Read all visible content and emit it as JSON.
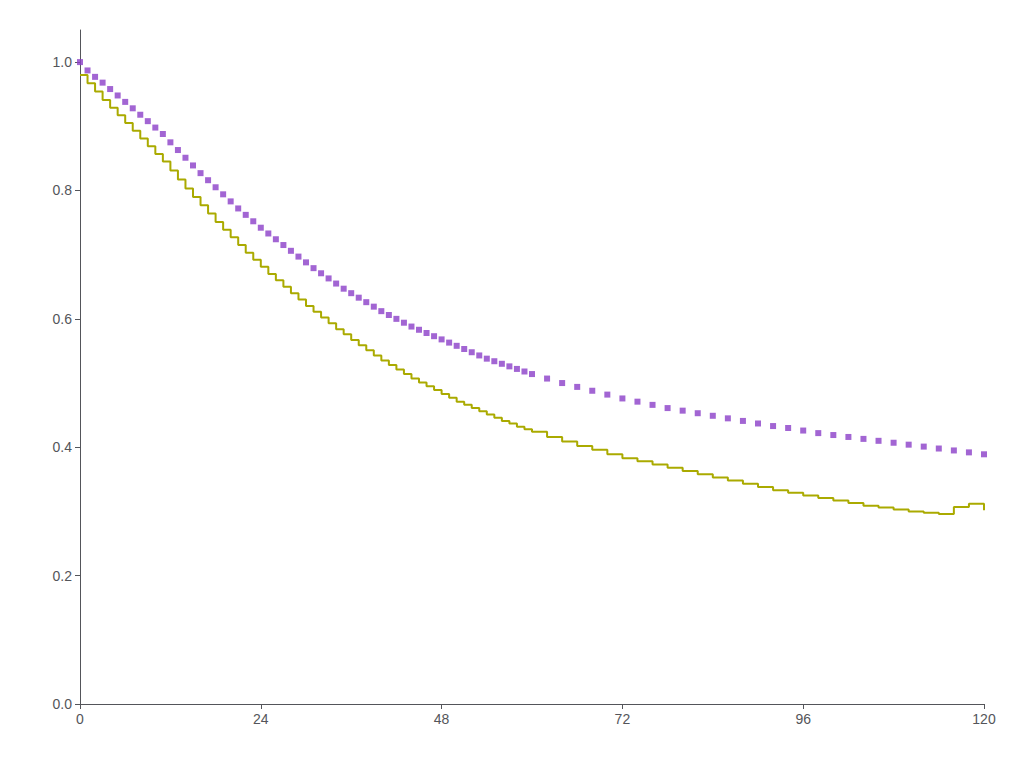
{
  "chart_data": {
    "type": "line",
    "xlim": [
      0,
      120
    ],
    "ylim": [
      0.0,
      1.05
    ],
    "xticks": [
      0,
      24,
      48,
      72,
      96,
      120
    ],
    "yticks": [
      {
        "value": 0.0,
        "label": "0.0"
      },
      0.2,
      0.4,
      0.6,
      0.8,
      {
        "value": 1.0,
        "label": "1.0"
      }
    ],
    "grid": false,
    "x": [
      0,
      1,
      2,
      3,
      4,
      5,
      6,
      7,
      8,
      9,
      10,
      11,
      12,
      13,
      14,
      15,
      16,
      17,
      18,
      19,
      20,
      21,
      22,
      23,
      24,
      25,
      26,
      27,
      28,
      29,
      30,
      31,
      32,
      33,
      34,
      35,
      36,
      37,
      38,
      39,
      40,
      41,
      42,
      43,
      44,
      45,
      46,
      47,
      48,
      49,
      50,
      51,
      52,
      53,
      54,
      55,
      56,
      57,
      58,
      59,
      60,
      62,
      64,
      66,
      68,
      70,
      72,
      74,
      76,
      78,
      80,
      82,
      84,
      86,
      88,
      90,
      92,
      94,
      96,
      98,
      100,
      102,
      104,
      106,
      108,
      110,
      112,
      114,
      116,
      118,
      120
    ],
    "series": [
      {
        "type": "scatter",
        "marker": "square",
        "color": "#8B3FC8",
        "values": [
          1.0,
          0.987,
          0.977,
          0.968,
          0.958,
          0.948,
          0.938,
          0.928,
          0.918,
          0.908,
          0.898,
          0.888,
          0.875,
          0.863,
          0.851,
          0.839,
          0.827,
          0.816,
          0.805,
          0.794,
          0.783,
          0.772,
          0.762,
          0.752,
          0.742,
          0.733,
          0.724,
          0.715,
          0.706,
          0.697,
          0.688,
          0.679,
          0.671,
          0.663,
          0.655,
          0.647,
          0.64,
          0.633,
          0.626,
          0.619,
          0.612,
          0.606,
          0.6,
          0.594,
          0.588,
          0.583,
          0.578,
          0.573,
          0.568,
          0.563,
          0.558,
          0.553,
          0.548,
          0.543,
          0.538,
          0.534,
          0.53,
          0.526,
          0.522,
          0.518,
          0.514,
          0.507,
          0.5,
          0.494,
          0.488,
          0.482,
          0.476,
          0.471,
          0.466,
          0.461,
          0.457,
          0.453,
          0.449,
          0.445,
          0.441,
          0.437,
          0.433,
          0.43,
          0.426,
          0.422,
          0.419,
          0.416,
          0.413,
          0.41,
          0.407,
          0.404,
          0.401,
          0.398,
          0.395,
          0.392,
          0.389
        ]
      },
      {
        "type": "step",
        "line_style": "solid",
        "color": "#AAAA00",
        "values": [
          0.98,
          0.967,
          0.954,
          0.941,
          0.929,
          0.917,
          0.905,
          0.893,
          0.881,
          0.869,
          0.857,
          0.845,
          0.831,
          0.817,
          0.803,
          0.79,
          0.777,
          0.764,
          0.751,
          0.739,
          0.727,
          0.715,
          0.703,
          0.692,
          0.681,
          0.67,
          0.66,
          0.65,
          0.64,
          0.63,
          0.62,
          0.611,
          0.602,
          0.593,
          0.584,
          0.576,
          0.567,
          0.559,
          0.551,
          0.543,
          0.535,
          0.528,
          0.521,
          0.514,
          0.507,
          0.501,
          0.495,
          0.489,
          0.483,
          0.477,
          0.471,
          0.466,
          0.461,
          0.456,
          0.451,
          0.446,
          0.441,
          0.437,
          0.432,
          0.428,
          0.424,
          0.416,
          0.409,
          0.402,
          0.396,
          0.389,
          0.383,
          0.378,
          0.373,
          0.368,
          0.363,
          0.358,
          0.353,
          0.348,
          0.343,
          0.338,
          0.333,
          0.329,
          0.325,
          0.321,
          0.317,
          0.313,
          0.309,
          0.306,
          0.303,
          0.3,
          0.298,
          0.296,
          0.307,
          0.312,
          0.302
        ]
      }
    ]
  }
}
